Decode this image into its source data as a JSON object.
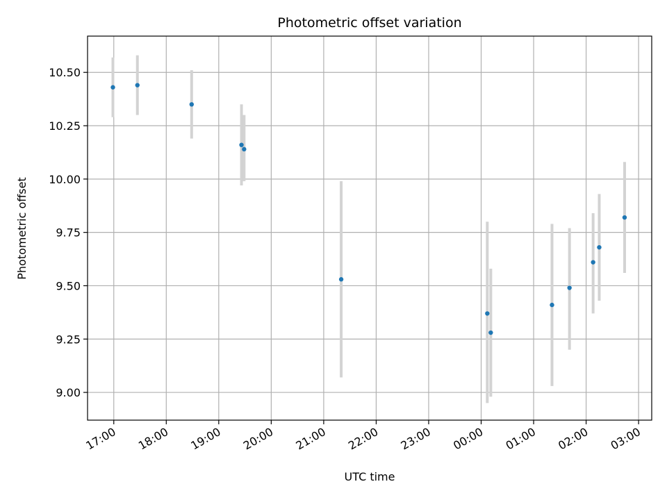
{
  "chart_data": {
    "type": "scatter",
    "title": "Photometric offset variation",
    "xlabel": "UTC time",
    "ylabel": "Photometric offset",
    "x_unit": "hours (UTC clock, past midnight continues beyond 24)",
    "xlim": [
      "16:30",
      "03:15"
    ],
    "ylim": [
      8.87,
      10.67
    ],
    "x_ticks": [
      "17:00",
      "18:00",
      "19:00",
      "20:00",
      "21:00",
      "22:00",
      "23:00",
      "00:00",
      "01:00",
      "02:00",
      "03:00"
    ],
    "y_ticks": [
      "9.00",
      "9.25",
      "9.50",
      "9.75",
      "10.00",
      "10.25",
      "10.50"
    ],
    "grid": true,
    "marker_color": "#1f77b4",
    "errorbar_color": "#d3d3d3",
    "points": [
      {
        "time": "16:59",
        "y": 10.43,
        "yerr_low": 10.29,
        "yerr_high": 10.57
      },
      {
        "time": "17:27",
        "y": 10.44,
        "yerr_low": 10.3,
        "yerr_high": 10.58
      },
      {
        "time": "18:29",
        "y": 10.35,
        "yerr_low": 10.19,
        "yerr_high": 10.51
      },
      {
        "time": "19:26",
        "y": 10.16,
        "yerr_low": 9.97,
        "yerr_high": 10.35
      },
      {
        "time": "19:29",
        "y": 10.14,
        "yerr_low": 9.99,
        "yerr_high": 10.3
      },
      {
        "time": "21:20",
        "y": 9.53,
        "yerr_low": 9.07,
        "yerr_high": 9.99
      },
      {
        "time": "00:07",
        "y": 9.37,
        "yerr_low": 8.95,
        "yerr_high": 9.8
      },
      {
        "time": "00:11",
        "y": 9.28,
        "yerr_low": 8.98,
        "yerr_high": 9.58
      },
      {
        "time": "01:21",
        "y": 9.41,
        "yerr_low": 9.03,
        "yerr_high": 9.79
      },
      {
        "time": "01:41",
        "y": 9.49,
        "yerr_low": 9.2,
        "yerr_high": 9.77
      },
      {
        "time": "02:08",
        "y": 9.61,
        "yerr_low": 9.37,
        "yerr_high": 9.84
      },
      {
        "time": "02:15",
        "y": 9.68,
        "yerr_low": 9.43,
        "yerr_high": 9.93
      },
      {
        "time": "02:44",
        "y": 9.82,
        "yerr_low": 9.56,
        "yerr_high": 10.08
      }
    ]
  }
}
